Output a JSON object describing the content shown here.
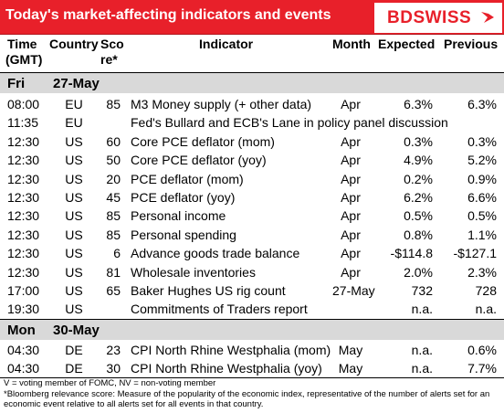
{
  "header": {
    "title": "Today's market-affecting indicators and events",
    "logo": "BDSWISS"
  },
  "columns": {
    "time_l1": "Time",
    "time_l2": "(GMT)",
    "country": "Country",
    "score_l1": "Sco",
    "score_l2": "re*",
    "indicator": "Indicator",
    "month": "Month",
    "expected": "Expected",
    "previous": "Previous"
  },
  "days": [
    {
      "day": "Fri",
      "date": "27-May",
      "rows": [
        {
          "time": "08:00",
          "country": "EU",
          "score": "85",
          "indicator": "M3 Money supply (+ other data)",
          "month": "Apr",
          "expected": "6.3%",
          "previous": "6.3%"
        },
        {
          "time": "11:35",
          "country": "EU",
          "score": "",
          "indicator": "Fed's Bullard and ECB's Lane in policy panel discussion",
          "month": "",
          "expected": "",
          "previous": ""
        },
        {
          "time": "12:30",
          "country": "US",
          "score": "60",
          "indicator": "Core PCE deflator (mom)",
          "month": "Apr",
          "expected": "0.3%",
          "previous": "0.3%"
        },
        {
          "time": "12:30",
          "country": "US",
          "score": "50",
          "indicator": "Core PCE deflator (yoy)",
          "month": "Apr",
          "expected": "4.9%",
          "previous": "5.2%"
        },
        {
          "time": "12:30",
          "country": "US",
          "score": "20",
          "indicator": "PCE deflator (mom)",
          "month": "Apr",
          "expected": "0.2%",
          "previous": "0.9%"
        },
        {
          "time": "12:30",
          "country": "US",
          "score": "45",
          "indicator": "PCE deflator (yoy)",
          "month": "Apr",
          "expected": "6.2%",
          "previous": "6.6%"
        },
        {
          "time": "12:30",
          "country": "US",
          "score": "85",
          "indicator": "Personal income",
          "month": "Apr",
          "expected": "0.5%",
          "previous": "0.5%"
        },
        {
          "time": "12:30",
          "country": "US",
          "score": "85",
          "indicator": "Personal spending",
          "month": "Apr",
          "expected": "0.8%",
          "previous": "1.1%"
        },
        {
          "time": "12:30",
          "country": "US",
          "score": "6",
          "indicator": "Advance goods trade balance",
          "month": "Apr",
          "expected": "-$114.8",
          "previous": "-$127.1"
        },
        {
          "time": "12:30",
          "country": "US",
          "score": "81",
          "indicator": "Wholesale inventories",
          "month": "Apr",
          "expected": "2.0%",
          "previous": "2.3%"
        },
        {
          "time": "17:00",
          "country": "US",
          "score": "65",
          "indicator": "Baker Hughes US rig count",
          "month": "27-May",
          "expected": "732",
          "previous": "728"
        },
        {
          "time": "19:30",
          "country": "US",
          "score": "",
          "indicator": "Commitments of Traders  report",
          "month": "",
          "expected": "n.a.",
          "previous": "n.a."
        }
      ]
    },
    {
      "day": "Mon",
      "date": "30-May",
      "rows": [
        {
          "time": "04:30",
          "country": "DE",
          "score": "23",
          "indicator": "CPI North Rhine Westphalia (mom)",
          "month": "May",
          "expected": "n.a.",
          "previous": "0.6%"
        },
        {
          "time": "04:30",
          "country": "DE",
          "score": "30",
          "indicator": "CPI North Rhine Westphalia (yoy)",
          "month": "May",
          "expected": "n.a.",
          "previous": "7.7%"
        }
      ]
    }
  ],
  "footnotes": {
    "line1": "V = voting member of FOMC, NV = non-voting member",
    "line2": "*Bloomberg relevance score:  Measure of the popularity of the economic index, representative of the number of alerts set for an economic event relative to all alerts set for all events in that country."
  },
  "colors": {
    "header_bg": "#e8202a",
    "day_row_bg": "#d9d9d9"
  }
}
